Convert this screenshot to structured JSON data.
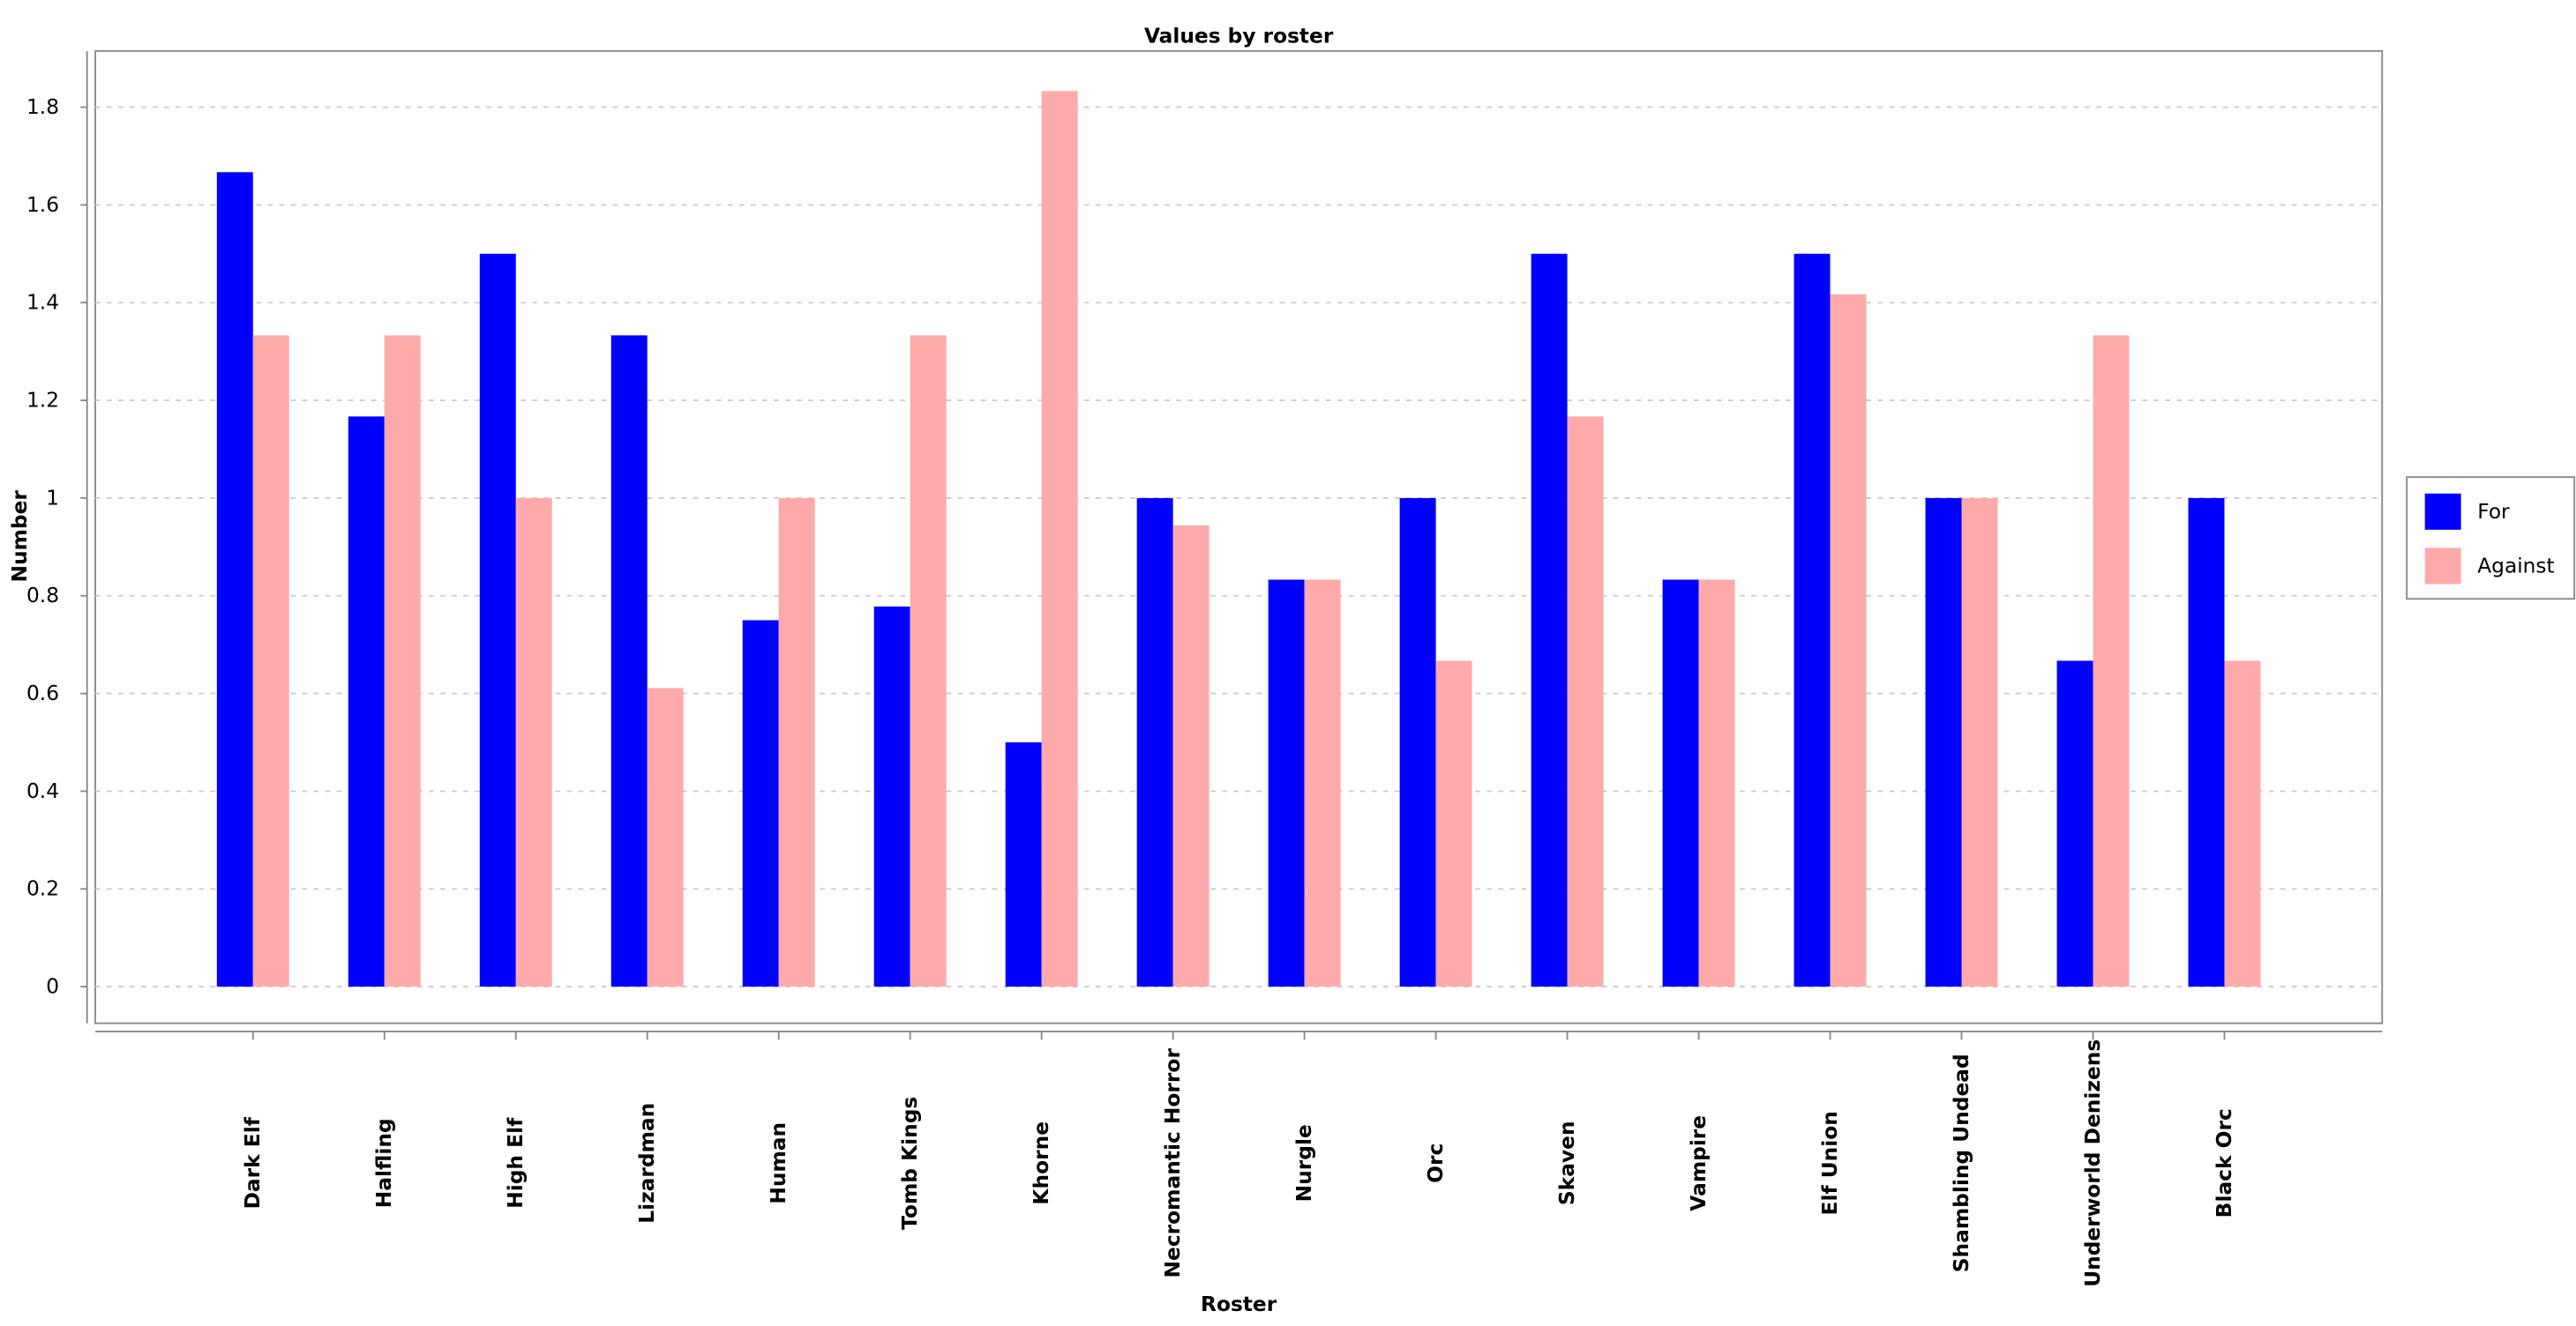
{
  "chart_data": {
    "type": "bar",
    "title": "Values by roster",
    "x_label": "Roster",
    "y_label": "Number",
    "categories": [
      "Dark Elf",
      "Halfling",
      "High Elf",
      "Lizardman",
      "Human",
      "Tomb Kings",
      "Khorne",
      "Necromantic Horror",
      "Nurgle",
      "Orc",
      "Skaven",
      "Vampire",
      "Elf Union",
      "Shambling Undead",
      "Underworld Denizens",
      "Black Orc"
    ],
    "series": [
      {
        "name": "For",
        "color": "#0000ff",
        "values": [
          1.667,
          1.167,
          1.5,
          1.333,
          0.75,
          0.778,
          0.5,
          1.0,
          0.833,
          1.0,
          1.5,
          0.833,
          1.5,
          1.0,
          0.667,
          1.0
        ]
      },
      {
        "name": "Against",
        "color": "#ffaaaa",
        "values": [
          1.333,
          1.333,
          1.0,
          0.611,
          1.0,
          1.333,
          1.833,
          0.944,
          0.833,
          0.667,
          1.167,
          0.833,
          1.417,
          1.0,
          1.333,
          0.667
        ]
      }
    ],
    "ylim": [
      -0.075,
      1.915
    ],
    "yticks": [
      0,
      0.2,
      0.4,
      0.6,
      0.8,
      1,
      1.2,
      1.4,
      1.6,
      1.8
    ],
    "grid": true,
    "legend": "right"
  }
}
